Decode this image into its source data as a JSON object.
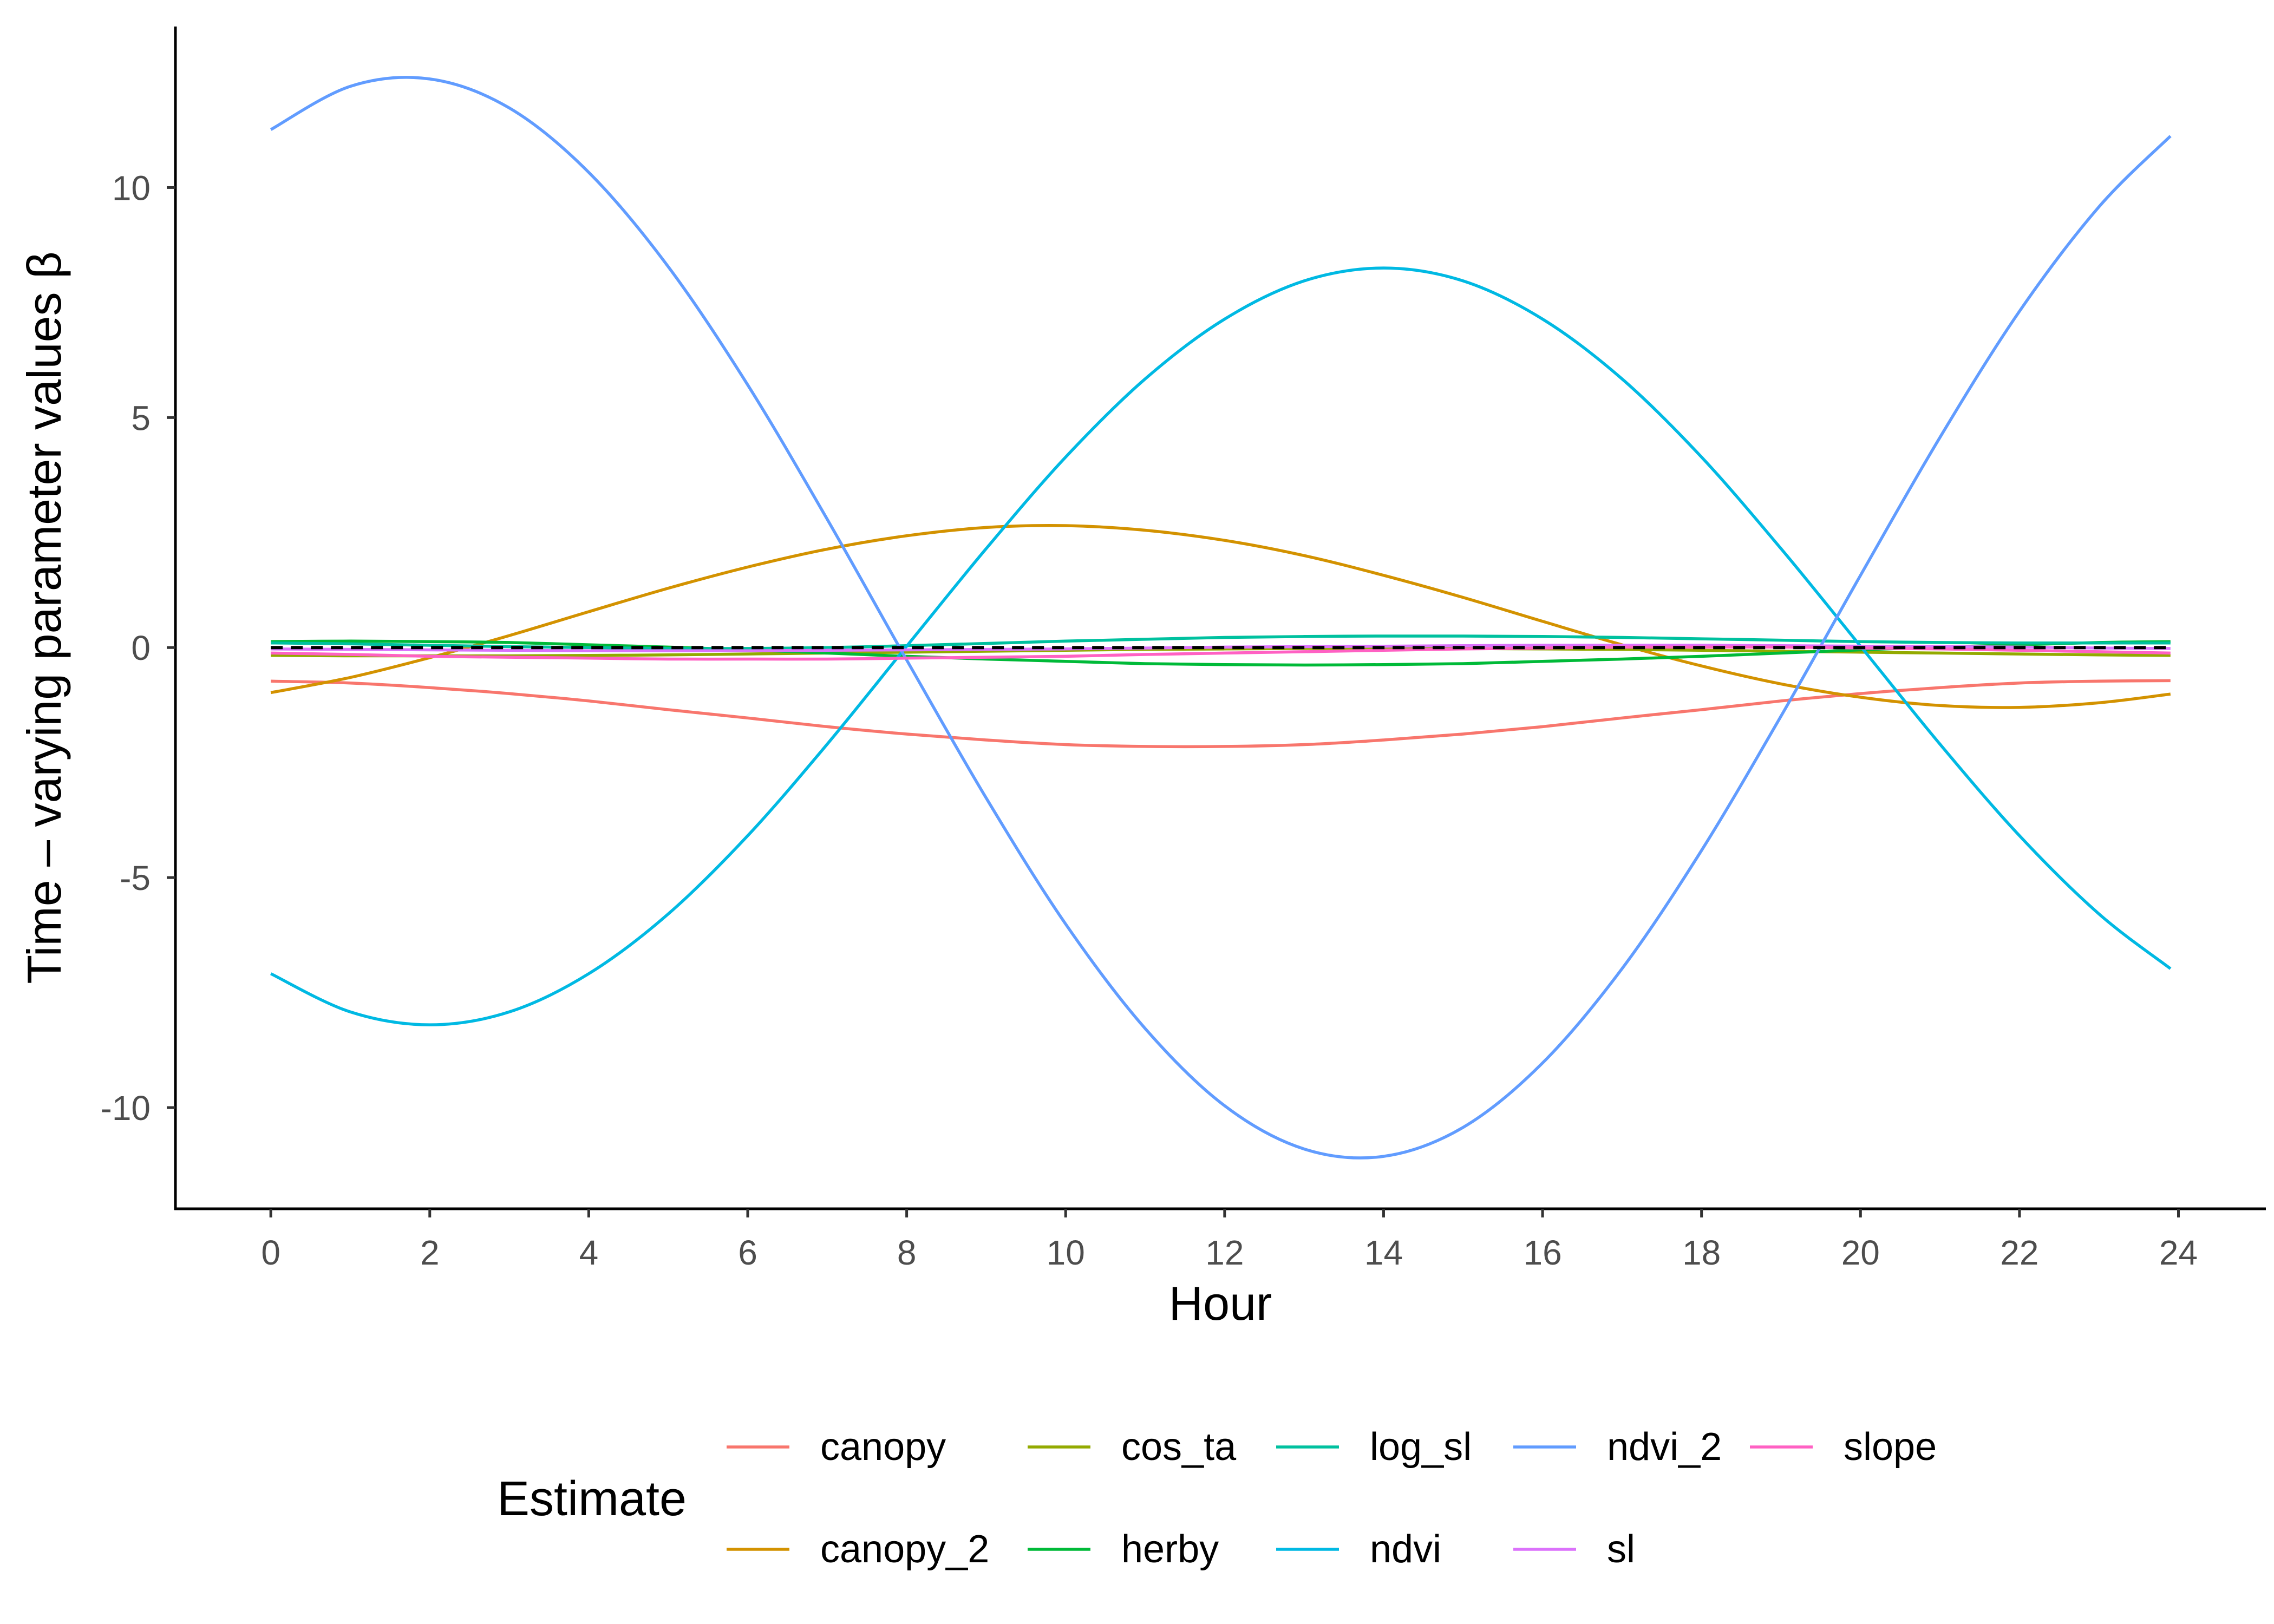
{
  "chart_data": {
    "type": "line",
    "xlabel": "Hour",
    "ylabel": "Time – varying parameter values β",
    "xlim": [
      -1.2,
      25.1
    ],
    "ylim": [
      -12.2,
      13.5
    ],
    "grid": false,
    "x_ticks": [
      {
        "value": 0,
        "label": "0"
      },
      {
        "value": 2,
        "label": "2"
      },
      {
        "value": 4,
        "label": "4"
      },
      {
        "value": 6,
        "label": "6"
      },
      {
        "value": 8,
        "label": "8"
      },
      {
        "value": 10,
        "label": "10"
      },
      {
        "value": 12,
        "label": "12"
      },
      {
        "value": 14,
        "label": "14"
      },
      {
        "value": 16,
        "label": "16"
      },
      {
        "value": 18,
        "label": "18"
      },
      {
        "value": 20,
        "label": "20"
      },
      {
        "value": 22,
        "label": "22"
      },
      {
        "value": 24,
        "label": "24"
      }
    ],
    "y_ticks": [
      {
        "value": -10,
        "label": "-10"
      },
      {
        "value": -5,
        "label": "-5"
      },
      {
        "value": 0,
        "label": "0"
      },
      {
        "value": 5,
        "label": "5"
      },
      {
        "value": 10,
        "label": "10"
      }
    ],
    "reference_line": {
      "y": 0,
      "x_range": [
        0,
        23.9
      ],
      "style": "dashed",
      "color": "#000000"
    },
    "legend": {
      "title": "Estimate",
      "position": "bottom",
      "rows": 2
    },
    "x": [
      0,
      1,
      2,
      3,
      4,
      5,
      6,
      7,
      8,
      9,
      10,
      11,
      12,
      13,
      14,
      15,
      16,
      17,
      18,
      19,
      20,
      21,
      22,
      23,
      23.9
    ],
    "series": [
      {
        "name": "canopy",
        "color": "#F8766D",
        "values": [
          -0.73,
          -0.77,
          -0.87,
          -1.0,
          -1.16,
          -1.35,
          -1.53,
          -1.72,
          -1.88,
          -2.01,
          -2.11,
          -2.15,
          -2.15,
          -2.11,
          -2.01,
          -1.88,
          -1.72,
          -1.53,
          -1.35,
          -1.16,
          -1.0,
          -0.87,
          -0.77,
          -0.73,
          -0.72
        ]
      },
      {
        "name": "canopy_2",
        "color": "#D39200",
        "values": [
          -0.98,
          -0.65,
          -0.22,
          0.26,
          0.78,
          1.29,
          1.75,
          2.14,
          2.43,
          2.61,
          2.65,
          2.55,
          2.33,
          2.0,
          1.57,
          1.09,
          0.57,
          0.06,
          -0.4,
          -0.79,
          -1.08,
          -1.26,
          -1.3,
          -1.2,
          -1.01
        ]
      },
      {
        "name": "cos_ta",
        "color": "#93AA00",
        "values": [
          -0.17,
          -0.18,
          -0.18,
          -0.18,
          -0.17,
          -0.16,
          -0.14,
          -0.12,
          -0.1,
          -0.08,
          -0.06,
          -0.04,
          -0.03,
          -0.02,
          -0.02,
          -0.02,
          -0.03,
          -0.04,
          -0.06,
          -0.08,
          -0.1,
          -0.12,
          -0.14,
          -0.16,
          -0.17
        ]
      },
      {
        "name": "herby",
        "color": "#00BA38",
        "values": [
          0.13,
          0.14,
          0.13,
          0.11,
          0.06,
          0.01,
          -0.05,
          -0.12,
          -0.19,
          -0.25,
          -0.3,
          -0.35,
          -0.37,
          -0.38,
          -0.37,
          -0.35,
          -0.3,
          -0.25,
          -0.19,
          -0.12,
          -0.05,
          0.01,
          0.06,
          0.11,
          0.13
        ]
      },
      {
        "name": "log_sl",
        "color": "#00C19F",
        "values": [
          0.1,
          0.08,
          0.05,
          0.02,
          0.0,
          -0.02,
          -0.02,
          0.0,
          0.04,
          0.09,
          0.14,
          0.18,
          0.22,
          0.24,
          0.25,
          0.25,
          0.24,
          0.22,
          0.19,
          0.16,
          0.13,
          0.11,
          0.1,
          0.1,
          0.1
        ]
      },
      {
        "name": "ndvi",
        "color": "#00B9E3",
        "values": [
          -7.09,
          -7.92,
          -8.2,
          -7.92,
          -7.09,
          -5.79,
          -4.09,
          -2.1,
          0.03,
          2.15,
          4.14,
          5.84,
          7.14,
          7.97,
          8.25,
          7.97,
          7.14,
          5.84,
          4.14,
          2.15,
          0.03,
          -2.1,
          -4.09,
          -5.79,
          -6.98
        ]
      },
      {
        "name": "ndvi_2",
        "color": "#619CFF",
        "values": [
          11.26,
          12.2,
          12.36,
          11.73,
          10.33,
          8.28,
          5.71,
          2.79,
          -0.27,
          -3.27,
          -6.01,
          -8.28,
          -9.96,
          -10.9,
          -11.06,
          -10.43,
          -9.03,
          -6.98,
          -4.41,
          -1.49,
          1.57,
          4.57,
          7.31,
          9.58,
          11.12
        ]
      },
      {
        "name": "sl",
        "color": "#DB72FB",
        "values": [
          -0.03,
          -0.04,
          -0.05,
          -0.06,
          -0.07,
          -0.07,
          -0.07,
          -0.06,
          -0.05,
          -0.04,
          -0.03,
          -0.01,
          0.01,
          0.02,
          0.03,
          0.04,
          0.05,
          0.05,
          0.05,
          0.04,
          0.03,
          0.02,
          0.01,
          -0.01,
          -0.02
        ]
      },
      {
        "name": "slope",
        "color": "#FF61C3",
        "values": [
          -0.12,
          -0.15,
          -0.19,
          -0.21,
          -0.23,
          -0.25,
          -0.25,
          -0.25,
          -0.23,
          -0.21,
          -0.19,
          -0.15,
          -0.12,
          -0.09,
          -0.06,
          -0.03,
          -0.01,
          0.01,
          0.01,
          0.01,
          -0.01,
          -0.03,
          -0.06,
          -0.09,
          -0.12
        ]
      }
    ]
  }
}
